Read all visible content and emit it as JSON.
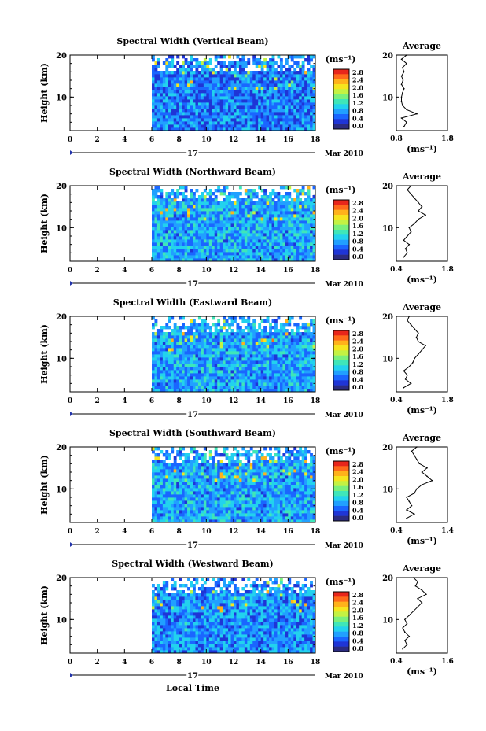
{
  "figure": {
    "xlabel": "Local Time",
    "date_label": "Mar 2010",
    "day_label": "17",
    "avg_title": "Average",
    "unit_label": "(ms⁻¹)"
  },
  "colorbar": {
    "ticks": [
      "2.8",
      "2.4",
      "2.0",
      "1.6",
      "1.2",
      "0.8",
      "0.4",
      "0.0"
    ],
    "colors": [
      "#2b2b80",
      "#1f35d6",
      "#1a66ff",
      "#21a0ff",
      "#22d2ee",
      "#3fe6b9",
      "#7af07b",
      "#c4f243",
      "#f6e51e",
      "#ffb21b",
      "#ff6a1b",
      "#e8261b"
    ]
  },
  "chart_data": [
    {
      "type": "heatmap",
      "title": "Spectral Width (Vertical Beam)",
      "xlabel": "Local Time",
      "ylabel": "Height (km)",
      "x_ticks": [
        0,
        2,
        4,
        6,
        8,
        10,
        12,
        14,
        16,
        18
      ],
      "xlim": [
        0,
        18
      ],
      "y_ticks": [
        10,
        20
      ],
      "ylim": [
        2,
        20
      ],
      "data_start_time": 6,
      "colorbar": {
        "label": "(ms⁻¹)",
        "range": [
          0,
          2.8
        ]
      },
      "typical_value": 0.6,
      "average_profile": {
        "xlim": [
          0.8,
          1.8
        ],
        "x_tick_labels": [
          "0.8",
          "1.8"
        ],
        "xlabel": "(ms⁻¹)",
        "heights": [
          3,
          4,
          5,
          6,
          7,
          8,
          9,
          10,
          11,
          12,
          13,
          14,
          15,
          16,
          17,
          18,
          19,
          20
        ],
        "values": [
          0.95,
          1.0,
          0.9,
          1.2,
          1.0,
          0.92,
          0.9,
          0.9,
          0.92,
          0.95,
          0.9,
          0.93,
          0.9,
          0.95,
          0.92,
          1.0,
          0.9,
          1.0
        ]
      }
    },
    {
      "type": "heatmap",
      "title": "Spectral Width (Northward Beam)",
      "xlabel": "Local Time",
      "ylabel": "Height (km)",
      "x_ticks": [
        0,
        2,
        4,
        6,
        8,
        10,
        12,
        14,
        16,
        18
      ],
      "xlim": [
        0,
        18
      ],
      "y_ticks": [
        10,
        20
      ],
      "ylim": [
        2,
        20
      ],
      "data_start_time": 6,
      "colorbar": {
        "label": "(ms⁻¹)",
        "range": [
          0,
          2.8
        ]
      },
      "typical_value": 0.8,
      "average_profile": {
        "xlim": [
          0.4,
          1.8
        ],
        "x_tick_labels": [
          "0.4",
          "1.8"
        ],
        "xlabel": "(ms⁻¹)",
        "heights": [
          3,
          4,
          5,
          6,
          7,
          8,
          9,
          10,
          11,
          12,
          13,
          14,
          15,
          16,
          17,
          18,
          19,
          20
        ],
        "values": [
          0.6,
          0.7,
          0.65,
          0.75,
          0.6,
          0.7,
          0.8,
          0.75,
          0.9,
          1.0,
          1.2,
          1.0,
          1.1,
          1.0,
          0.9,
          0.8,
          0.7,
          0.8
        ]
      }
    },
    {
      "type": "heatmap",
      "title": "Spectral Width (Eastward Beam)",
      "xlabel": "Local Time",
      "ylabel": "Height (km)",
      "x_ticks": [
        0,
        2,
        4,
        6,
        8,
        10,
        12,
        14,
        16,
        18
      ],
      "xlim": [
        0,
        18
      ],
      "y_ticks": [
        10,
        20
      ],
      "ylim": [
        2,
        20
      ],
      "data_start_time": 6,
      "colorbar": {
        "label": "(ms⁻¹)",
        "range": [
          0,
          2.8
        ]
      },
      "typical_value": 0.8,
      "average_profile": {
        "xlim": [
          0.4,
          1.8
        ],
        "x_tick_labels": [
          "0.4",
          "1.8"
        ],
        "xlabel": "(ms⁻¹)",
        "heights": [
          3,
          4,
          5,
          6,
          7,
          8,
          9,
          10,
          11,
          12,
          13,
          14,
          15,
          16,
          17,
          18,
          19,
          20
        ],
        "values": [
          0.6,
          0.8,
          0.65,
          0.7,
          0.6,
          0.75,
          0.85,
          0.9,
          1.0,
          1.1,
          1.2,
          1.0,
          0.95,
          1.0,
          0.9,
          0.8,
          0.7,
          0.75
        ]
      }
    },
    {
      "type": "heatmap",
      "title": "Spectral Width (Southward Beam)",
      "xlabel": "Local Time",
      "ylabel": "Height (km)",
      "x_ticks": [
        0,
        2,
        4,
        6,
        8,
        10,
        12,
        14,
        16,
        18
      ],
      "xlim": [
        0,
        18
      ],
      "y_ticks": [
        10,
        20
      ],
      "ylim": [
        2,
        20
      ],
      "data_start_time": 6,
      "colorbar": {
        "label": "(ms⁻¹)",
        "range": [
          0,
          2.8
        ]
      },
      "typical_value": 0.8,
      "average_profile": {
        "xlim": [
          0.4,
          1.4
        ],
        "x_tick_labels": [
          "0.4",
          "1.4"
        ],
        "xlabel": "(ms⁻¹)",
        "heights": [
          3,
          4,
          5,
          6,
          7,
          8,
          9,
          10,
          11,
          12,
          13,
          14,
          15,
          16,
          17,
          18,
          19,
          20
        ],
        "values": [
          0.6,
          0.75,
          0.6,
          0.7,
          0.65,
          0.6,
          0.75,
          0.8,
          0.9,
          1.1,
          1.0,
          0.9,
          1.0,
          0.85,
          0.8,
          0.75,
          0.7,
          0.8
        ]
      }
    },
    {
      "type": "heatmap",
      "title": "Spectral Width (Westward Beam)",
      "xlabel": "Local Time",
      "ylabel": "Height (km)",
      "x_ticks": [
        0,
        2,
        4,
        6,
        8,
        10,
        12,
        14,
        16,
        18
      ],
      "xlim": [
        0,
        18
      ],
      "y_ticks": [
        10,
        20
      ],
      "ylim": [
        2,
        20
      ],
      "data_start_time": 6,
      "colorbar": {
        "label": "(ms⁻¹)",
        "range": [
          0,
          2.8
        ]
      },
      "typical_value": 0.7,
      "average_profile": {
        "xlim": [
          0.4,
          1.6
        ],
        "x_tick_labels": [
          "0.4",
          "1.6"
        ],
        "xlabel": "(ms⁻¹)",
        "heights": [
          3,
          4,
          5,
          6,
          7,
          8,
          9,
          10,
          11,
          12,
          13,
          14,
          15,
          16,
          17,
          18,
          19,
          20
        ],
        "values": [
          0.55,
          0.65,
          0.6,
          0.7,
          0.6,
          0.55,
          0.65,
          0.6,
          0.7,
          0.8,
          0.9,
          1.0,
          0.9,
          1.1,
          1.0,
          0.85,
          0.9,
          0.8
        ]
      }
    }
  ]
}
